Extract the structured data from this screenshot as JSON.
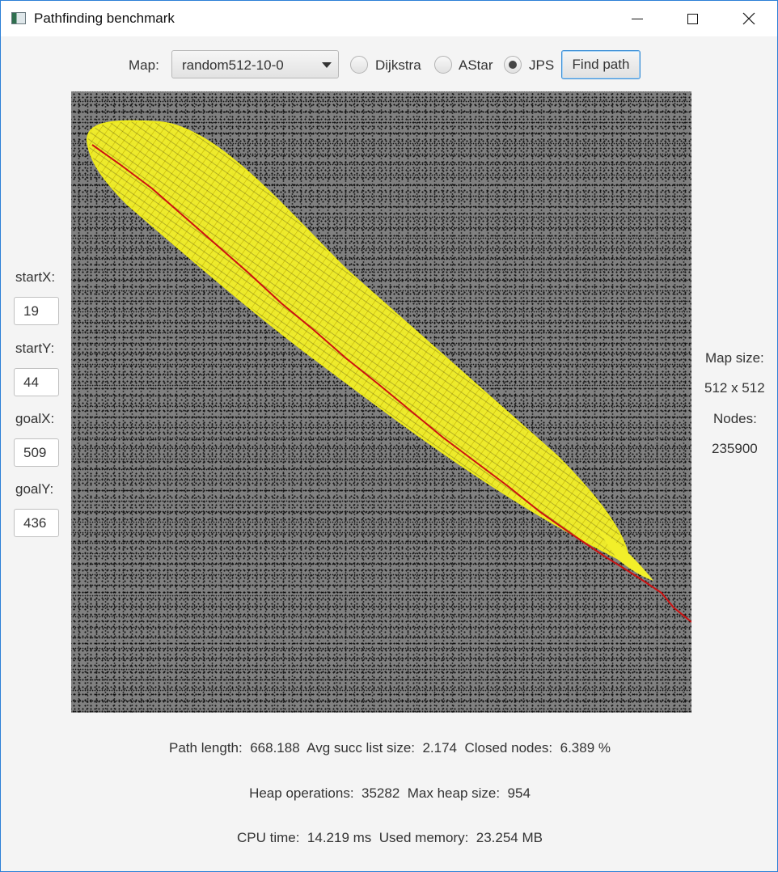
{
  "window": {
    "title": "Pathfinding benchmark",
    "icons": {
      "app": "app-window-icon",
      "minimize": "minimize-icon",
      "maximize": "maximize-icon",
      "close": "close-icon"
    }
  },
  "toolbar": {
    "map_label": "Map:",
    "map_selected": "random512-10-0",
    "algorithms": [
      {
        "label": "Dijkstra",
        "selected": false
      },
      {
        "label": "AStar",
        "selected": false
      },
      {
        "label": "JPS",
        "selected": true
      }
    ],
    "find_button": "Find path"
  },
  "left_panel": {
    "start_x_label": "startX:",
    "start_x": "19",
    "start_y_label": "startY:",
    "start_y": "44",
    "goal_x_label": "goalX:",
    "goal_x": "509",
    "goal_y_label": "goalY:",
    "goal_y": "436"
  },
  "right_panel": {
    "map_size_label": "Map size:",
    "map_size": "512 x 512",
    "nodes_label": "Nodes:",
    "nodes": "235900"
  },
  "stats": {
    "path_length_label": "Path length:",
    "path_length": "668.188",
    "avg_succ_label": "Avg succ list size:",
    "avg_succ": "2.174",
    "closed_nodes_label": "Closed nodes:",
    "closed_nodes": "6.389 %",
    "heap_ops_label": "Heap operations:",
    "heap_ops": "35282",
    "max_heap_label": "Max heap size:",
    "max_heap": "954",
    "cpu_time_label": "CPU time:",
    "cpu_time": "14.219 ms",
    "used_memory_label": "Used memory:",
    "used_memory": "23.254 MB"
  },
  "map": {
    "background_color": "#808080",
    "obstacle_color": "#111111",
    "explored_color": "#ffff00",
    "path_color": "#cc1111"
  }
}
